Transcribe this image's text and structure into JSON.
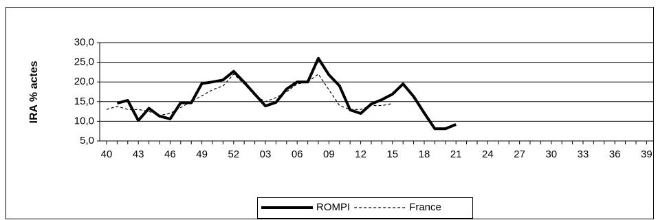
{
  "chart_data": {
    "type": "line",
    "y_label": "IRA % actes",
    "categories": [
      "40",
      null,
      null,
      "43",
      null,
      null,
      "46",
      null,
      null,
      "49",
      null,
      null,
      "52",
      null,
      null,
      "03",
      null,
      null,
      "06",
      null,
      null,
      "09",
      null,
      null,
      "12",
      null,
      null,
      "15",
      null,
      null,
      "18",
      null,
      null,
      "21",
      null,
      null,
      "24",
      null,
      null,
      "27",
      null,
      null,
      "30",
      null,
      null,
      "33",
      null,
      null,
      "36",
      null,
      null,
      "39"
    ],
    "series": [
      {
        "name": "ROMPI",
        "color": "#000000",
        "style": "solid",
        "values": [
          null,
          14.6,
          15.3,
          10.2,
          13.3,
          11.3,
          10.6,
          14.7,
          14.7,
          19.6,
          20.0,
          20.5,
          22.7,
          19.9,
          16.9,
          13.9,
          14.8,
          18.2,
          20.0,
          20.0,
          26.0,
          21.8,
          19.0,
          12.9,
          12.0,
          14.4,
          15.5,
          16.9,
          19.5,
          16.3,
          12.1,
          8.1,
          8.1,
          9.2,
          null,
          null,
          null,
          null,
          null,
          null,
          null,
          null,
          null,
          null,
          null,
          null,
          null,
          null,
          null,
          null,
          null,
          null
        ]
      },
      {
        "name": "France",
        "color": "#000000",
        "style": "dashed",
        "values": [
          13.0,
          13.8,
          13.0,
          13.0,
          12.5,
          11.5,
          12.0,
          13.5,
          15.0,
          16.5,
          18.0,
          19.0,
          22.0,
          19.5,
          16.5,
          15.0,
          16.0,
          17.5,
          19.5,
          20.0,
          22.0,
          18.0,
          14.0,
          13.0,
          13.0,
          14.0,
          14.0,
          14.5,
          null,
          null,
          null,
          null,
          null,
          null,
          null,
          null,
          null,
          null,
          null,
          null,
          null,
          null,
          null,
          null,
          null,
          null,
          null,
          null,
          null,
          null,
          null,
          null
        ]
      }
    ],
    "ylim": [
      5,
      30
    ],
    "yticks": [
      {
        "value": 5,
        "label": "5,0"
      },
      {
        "value": 10,
        "label": "10,0"
      },
      {
        "value": 15,
        "label": "15,0"
      },
      {
        "value": 20,
        "label": "20,0"
      },
      {
        "value": 25,
        "label": "25,0"
      },
      {
        "value": 30,
        "label": "30,0"
      }
    ],
    "grid": true,
    "legend": "bottom"
  }
}
